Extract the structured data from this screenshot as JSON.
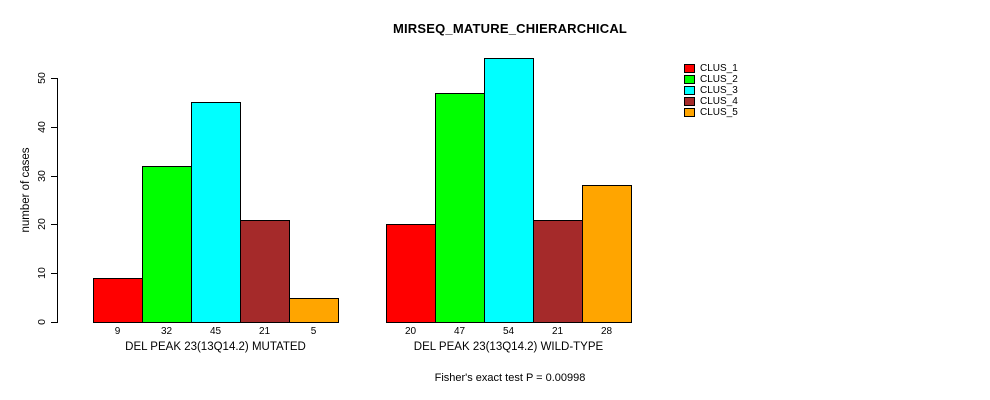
{
  "chart_data": {
    "type": "bar",
    "title": "MIRSEQ_MATURE_CHIERARCHICAL",
    "xlabel": "",
    "ylabel": "number of cases",
    "ylim": [
      0,
      55
    ],
    "yticks": [
      0,
      10,
      20,
      30,
      40,
      50
    ],
    "grid": false,
    "legend_position": "top-right",
    "background": "#ffffff",
    "groups": [
      {
        "label": "DEL PEAK 23(13Q14.2) MUTATED",
        "values": [
          9,
          32,
          45,
          21,
          5
        ]
      },
      {
        "label": "DEL PEAK 23(13Q14.2) WILD-TYPE",
        "values": [
          20,
          47,
          54,
          21,
          28
        ]
      }
    ],
    "series": [
      {
        "name": "CLUS_1",
        "color": "#FF0000"
      },
      {
        "name": "CLUS_2",
        "color": "#00FF00"
      },
      {
        "name": "CLUS_3",
        "color": "#00FFFF"
      },
      {
        "name": "CLUS_4",
        "color": "#A52A2A"
      },
      {
        "name": "CLUS_5",
        "color": "#FFA500"
      }
    ],
    "footnote": "Fisher's exact test P = 0.00998"
  }
}
